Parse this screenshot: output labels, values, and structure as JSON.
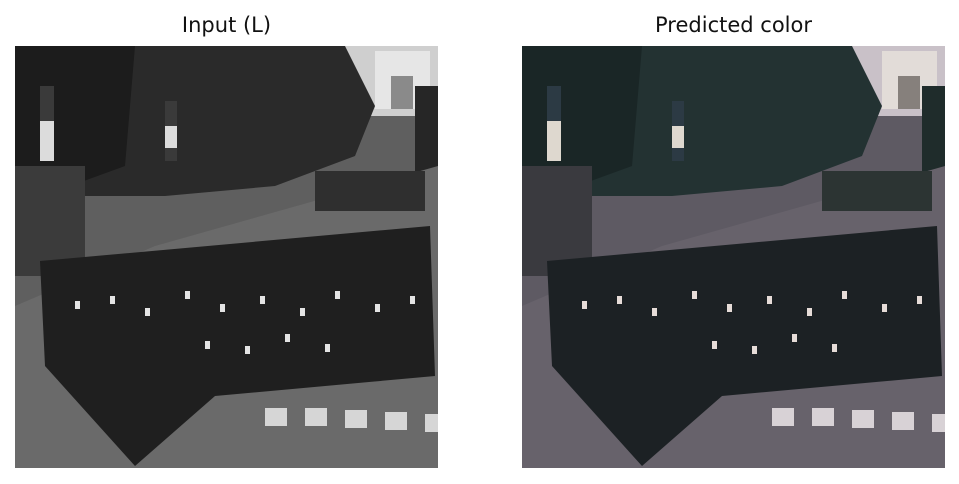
{
  "panels": [
    {
      "title": "Input (L)",
      "kind": "grayscale-parade-photo"
    },
    {
      "title": "Predicted color",
      "kind": "colorized-parade-photo"
    }
  ],
  "palette": {
    "background": "#ffffff",
    "title_text": "#111111",
    "road_gray": "#5f5f5f",
    "road_color": "#5e5a63",
    "trees_gray": "#2a2a2a",
    "trees_color": "#233232",
    "sky_gray": "#cfcfcf",
    "sky_color": "#c9c1c8",
    "stripe": "#d6d6d6"
  }
}
